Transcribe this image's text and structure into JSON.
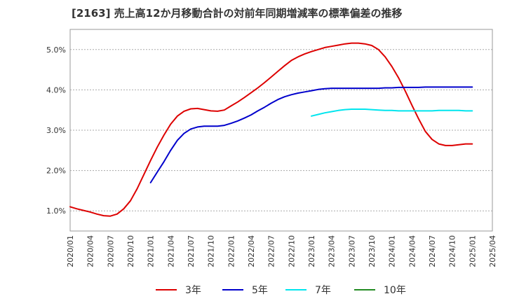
{
  "chart_data": {
    "type": "line",
    "title": "[2163]  売上高12か月移動合計の対前年同期増減率の標準偏差の推移",
    "y_ticks": [
      "1.0%",
      "2.0%",
      "3.0%",
      "4.0%",
      "5.0%"
    ],
    "x_ticks": [
      "2020/01",
      "2020/04",
      "2020/07",
      "2020/10",
      "2021/01",
      "2021/04",
      "2021/07",
      "2021/10",
      "2022/01",
      "2022/04",
      "2022/07",
      "2022/10",
      "2023/01",
      "2023/04",
      "2023/07",
      "2023/10",
      "2024/01",
      "2024/04",
      "2024/07",
      "2024/10",
      "2025/01",
      "2025/04"
    ],
    "ylim": [
      0.5,
      5.5
    ],
    "grid": true,
    "legend_position": "bottom",
    "series": [
      {
        "name": "3年",
        "color": "#dd0000",
        "x": [
          "2020/01",
          "2020/02",
          "2020/03",
          "2020/04",
          "2020/05",
          "2020/06",
          "2020/07",
          "2020/08",
          "2020/09",
          "2020/10",
          "2020/11",
          "2020/12",
          "2021/01",
          "2021/02",
          "2021/03",
          "2021/04",
          "2021/05",
          "2021/06",
          "2021/07",
          "2021/08",
          "2021/09",
          "2021/10",
          "2021/11",
          "2021/12",
          "2022/01",
          "2022/02",
          "2022/03",
          "2022/04",
          "2022/05",
          "2022/06",
          "2022/07",
          "2022/08",
          "2022/09",
          "2022/10",
          "2022/11",
          "2022/12",
          "2023/01",
          "2023/02",
          "2023/03",
          "2023/04",
          "2023/05",
          "2023/06",
          "2023/07",
          "2023/08",
          "2023/09",
          "2023/10",
          "2023/11",
          "2023/12",
          "2024/01",
          "2024/02",
          "2024/03",
          "2024/04",
          "2024/05",
          "2024/06",
          "2024/07",
          "2024/08",
          "2024/09",
          "2024/10",
          "2024/11",
          "2024/12",
          "2025/01"
        ],
        "values": [
          1.1,
          1.05,
          1.01,
          0.97,
          0.92,
          0.88,
          0.87,
          0.92,
          1.05,
          1.25,
          1.55,
          1.9,
          2.25,
          2.58,
          2.88,
          3.15,
          3.35,
          3.47,
          3.53,
          3.54,
          3.51,
          3.48,
          3.47,
          3.5,
          3.6,
          3.7,
          3.81,
          3.93,
          4.05,
          4.18,
          4.32,
          4.46,
          4.6,
          4.73,
          4.82,
          4.89,
          4.95,
          5.0,
          5.05,
          5.08,
          5.11,
          5.14,
          5.16,
          5.16,
          5.14,
          5.1,
          5.0,
          4.82,
          4.58,
          4.3,
          3.97,
          3.62,
          3.28,
          2.97,
          2.77,
          2.66,
          2.62,
          2.62,
          2.64,
          2.66,
          2.66
        ]
      },
      {
        "name": "5年",
        "color": "#0000cc",
        "x": [
          "2021/01",
          "2021/02",
          "2021/03",
          "2021/04",
          "2021/05",
          "2021/06",
          "2021/07",
          "2021/08",
          "2021/09",
          "2021/10",
          "2021/11",
          "2021/12",
          "2022/01",
          "2022/02",
          "2022/03",
          "2022/04",
          "2022/05",
          "2022/06",
          "2022/07",
          "2022/08",
          "2022/09",
          "2022/10",
          "2022/11",
          "2022/12",
          "2023/01",
          "2023/02",
          "2023/03",
          "2023/04",
          "2023/05",
          "2023/06",
          "2023/07",
          "2023/08",
          "2023/09",
          "2023/10",
          "2023/11",
          "2023/12",
          "2024/01",
          "2024/02",
          "2024/03",
          "2024/04",
          "2024/05",
          "2024/06",
          "2024/07",
          "2024/08",
          "2024/09",
          "2024/10",
          "2024/11",
          "2024/12",
          "2025/01"
        ],
        "values": [
          1.7,
          1.96,
          2.22,
          2.5,
          2.75,
          2.92,
          3.03,
          3.08,
          3.1,
          3.1,
          3.1,
          3.12,
          3.17,
          3.23,
          3.3,
          3.38,
          3.48,
          3.57,
          3.67,
          3.76,
          3.83,
          3.88,
          3.92,
          3.95,
          3.98,
          4.01,
          4.03,
          4.04,
          4.04,
          4.04,
          4.04,
          4.04,
          4.04,
          4.04,
          4.04,
          4.05,
          4.05,
          4.06,
          4.06,
          4.06,
          4.06,
          4.07,
          4.07,
          4.07,
          4.07,
          4.07,
          4.07,
          4.07,
          4.07
        ]
      },
      {
        "name": "7年",
        "color": "#00e5ee",
        "x": [
          "2023/01",
          "2023/02",
          "2023/03",
          "2023/04",
          "2023/05",
          "2023/06",
          "2023/07",
          "2023/08",
          "2023/09",
          "2023/10",
          "2023/11",
          "2023/12",
          "2024/01",
          "2024/02",
          "2024/03",
          "2024/04",
          "2024/05",
          "2024/06",
          "2024/07",
          "2024/08",
          "2024/09",
          "2024/10",
          "2024/11",
          "2024/12",
          "2025/01"
        ],
        "values": [
          3.35,
          3.39,
          3.43,
          3.46,
          3.49,
          3.51,
          3.52,
          3.52,
          3.52,
          3.51,
          3.5,
          3.49,
          3.49,
          3.48,
          3.48,
          3.48,
          3.48,
          3.48,
          3.48,
          3.49,
          3.49,
          3.49,
          3.49,
          3.48,
          3.48
        ]
      },
      {
        "name": "10年",
        "color": "#228B22",
        "x": [],
        "values": []
      }
    ]
  }
}
